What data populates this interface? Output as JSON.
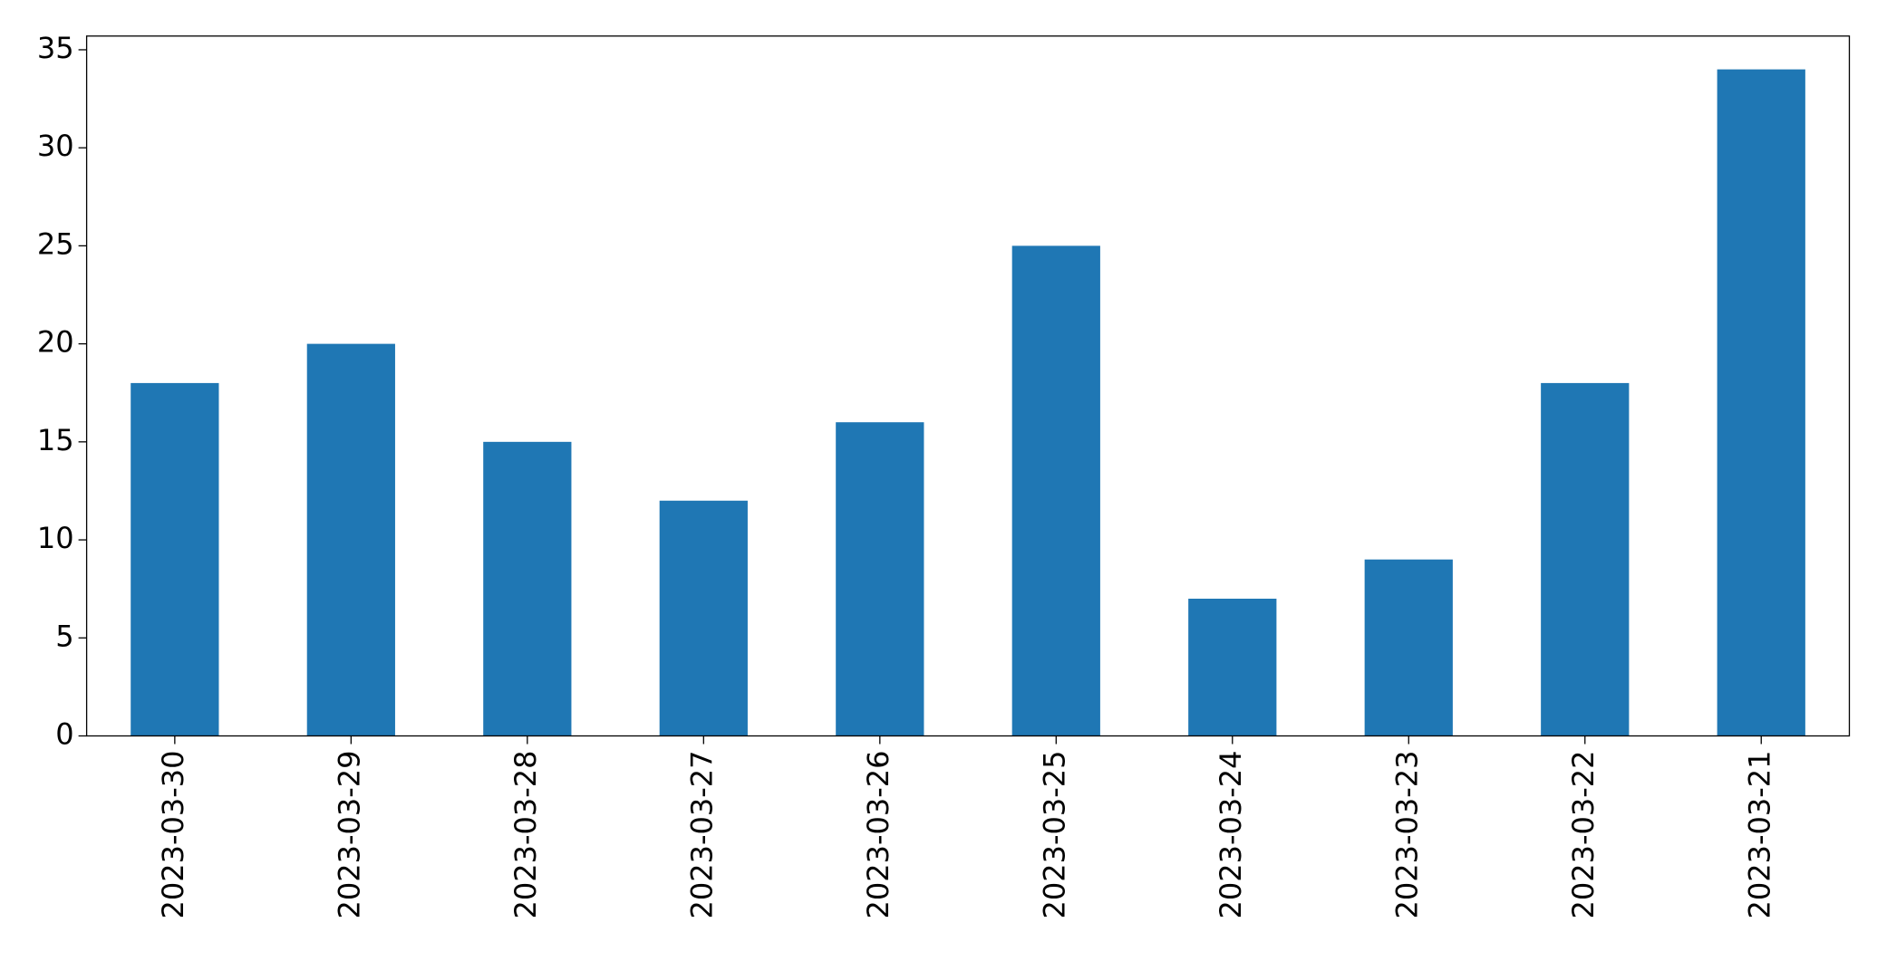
{
  "chart_data": {
    "type": "bar",
    "categories": [
      "2023-03-30",
      "2023-03-29",
      "2023-03-28",
      "2023-03-27",
      "2023-03-26",
      "2023-03-25",
      "2023-03-24",
      "2023-03-23",
      "2023-03-22",
      "2023-03-21"
    ],
    "values": [
      18,
      20,
      15,
      12,
      16,
      25,
      7,
      9,
      18,
      34
    ],
    "color": "#1f77b4",
    "ylim": [
      0,
      35.7
    ],
    "yticks": [
      0,
      5,
      10,
      15,
      20,
      25,
      30,
      35
    ],
    "grid": false
  }
}
